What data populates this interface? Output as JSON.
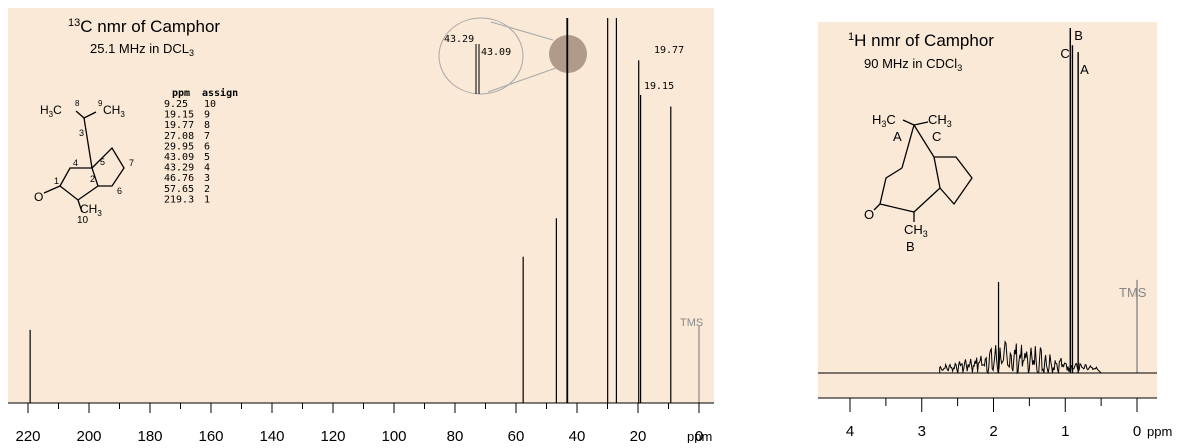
{
  "colors": {
    "panel_bg": "#f9e9d6",
    "line": "#000000",
    "tms": "#888888",
    "zoom_fill": "#b09a8a"
  },
  "chart_data": [
    {
      "type": "line",
      "title": "nmr of Camphor",
      "title_prefix": "13",
      "title_nucleus": "C",
      "subtitle": "25.1 MHz in DCL",
      "subtitle_sub": "3",
      "xlabel": "ppm",
      "xlim": [
        220,
        0
      ],
      "x_ticks": [
        220,
        200,
        180,
        160,
        140,
        120,
        100,
        80,
        60,
        40,
        20,
        0
      ],
      "grid": false,
      "peaks": [
        {
          "ppm": 219.3,
          "height": 0.19
        },
        {
          "ppm": 57.65,
          "height": 0.38
        },
        {
          "ppm": 46.76,
          "height": 0.48
        },
        {
          "ppm": 43.29,
          "height": 1.0
        },
        {
          "ppm": 43.09,
          "height": 1.0
        },
        {
          "ppm": 29.95,
          "height": 1.0
        },
        {
          "ppm": 27.08,
          "height": 1.0
        },
        {
          "ppm": 19.77,
          "height": 0.89
        },
        {
          "ppm": 19.15,
          "height": 0.8
        },
        {
          "ppm": 9.25,
          "height": 0.77
        },
        {
          "ppm": 0,
          "height": 0.2
        }
      ],
      "peak_labels": [
        "43.29",
        "43.09",
        "19.77",
        "19.15"
      ],
      "tms_label": "TMS",
      "table_headers": [
        "ppm",
        "assign"
      ],
      "table_rows": [
        [
          "9.25",
          "10"
        ],
        [
          "19.15",
          "9"
        ],
        [
          "19.77",
          "8"
        ],
        [
          "27.08",
          "7"
        ],
        [
          "29.95",
          "6"
        ],
        [
          "43.09",
          "5"
        ],
        [
          "43.29",
          "4"
        ],
        [
          "46.76",
          "3"
        ],
        [
          "57.65",
          "2"
        ],
        [
          "219.3",
          "1"
        ]
      ],
      "structure_labels": {
        "h3c": "H",
        "h3c_sub": "3",
        "h3c_end": "C",
        "c8": "8",
        "c9": "9",
        "ch3_right": "CH",
        "ch3_right_sub": "3",
        "n1": "1",
        "n2": "2",
        "n3": "3",
        "n4": "4",
        "n5": "5",
        "n6": "6",
        "n7": "7",
        "o": "O",
        "ch3_bottom": "CH",
        "ch3_bottom_sub": "3",
        "n10": "10"
      }
    },
    {
      "type": "line",
      "title": "nmr of Camphor",
      "title_prefix": "1",
      "title_nucleus": "H",
      "subtitle": "90 MHz in CDCl",
      "subtitle_sub": "3",
      "xlabel": "ppm",
      "xlim": [
        4.5,
        -0.3
      ],
      "x_ticks": [
        4,
        3,
        2,
        1,
        0
      ],
      "grid": false,
      "peaks": [
        {
          "ppm": 0.93,
          "height": 1.0,
          "label": "B"
        },
        {
          "ppm": 0.9,
          "height": 0.95,
          "label": "C"
        },
        {
          "ppm": 0.82,
          "height": 0.93,
          "label": "A"
        },
        {
          "ppm": 0,
          "height": 0.27,
          "label": "TMS"
        }
      ],
      "structure_labels": {
        "h3c": "H",
        "h3c_sub": "3",
        "h3c_end": "C",
        "a": "A",
        "ch3_right": "CH",
        "ch3_right_sub": "3",
        "c": "C",
        "o": "O",
        "ch3_bottom": "CH",
        "ch3_bottom_sub": "3",
        "b": "B"
      }
    }
  ]
}
